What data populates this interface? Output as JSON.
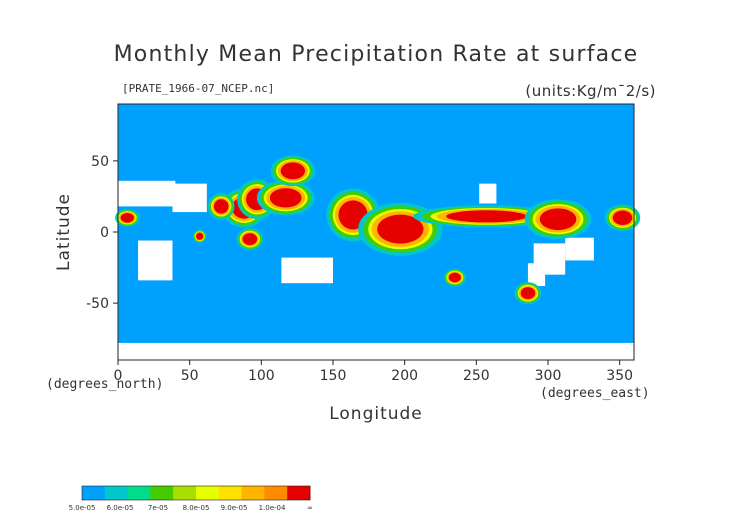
{
  "chart_data": {
    "type": "heatmap",
    "title": "Monthly Mean Precipitation Rate at surface",
    "source_label": "[PRATE_1966-07_NCEP.nc]",
    "units_label": "(units:Kg/m¯2/s)",
    "xlabel": "Longitude",
    "ylabel": "Latitude",
    "x_unit_label": "(degrees_east)",
    "y_unit_label": "(degrees_north)",
    "xlim": [
      0,
      360
    ],
    "ylim": [
      -90,
      90
    ],
    "x_ticks": [
      "0",
      "50",
      "100",
      "150",
      "200",
      "250",
      "300",
      "350"
    ],
    "y_ticks": [
      "50",
      "0",
      "-50"
    ],
    "background_color": "#00a0ff",
    "missing_color": "#ffffff",
    "colorbar": {
      "labels": [
        "5.0e-05",
        "6.0e-05",
        "7e-05",
        "8.0e-05",
        "9.0e-05",
        "1.0e-04",
        "∞"
      ],
      "colors": [
        "#00a0ff",
        "#00c8c8",
        "#00dc8c",
        "#44cc00",
        "#aade00",
        "#e6ff00",
        "#ffe100",
        "#ffb400",
        "#ff8c00",
        "#e60000"
      ]
    },
    "regions": [
      {
        "lon": [
          78,
          98
        ],
        "lat": [
          8,
          26
        ],
        "level": 9
      },
      {
        "lon": [
          88,
          106
        ],
        "lat": [
          14,
          32
        ],
        "level": 9
      },
      {
        "lon": [
          104,
          130
        ],
        "lat": [
          16,
          32
        ],
        "level": 9
      },
      {
        "lon": [
          66,
          78
        ],
        "lat": [
          12,
          24
        ],
        "level": 9
      },
      {
        "lon": [
          152,
          176
        ],
        "lat": [
          0,
          24
        ],
        "level": 9
      },
      {
        "lon": [
          178,
          216
        ],
        "lat": [
          -10,
          14
        ],
        "level": 9
      },
      {
        "lon": [
          224,
          290
        ],
        "lat": [
          6,
          16
        ],
        "level": 9
      },
      {
        "lon": [
          292,
          322
        ],
        "lat": [
          0,
          18
        ],
        "level": 9
      },
      {
        "lon": [
          344,
          360
        ],
        "lat": [
          4,
          16
        ],
        "level": 9
      },
      {
        "lon": [
          1,
          12
        ],
        "lat": [
          6,
          14
        ],
        "level": 9
      },
      {
        "lon": [
          86,
          98
        ],
        "lat": [
          -10,
          0
        ],
        "level": 9
      },
      {
        "lon": [
          112,
          132
        ],
        "lat": [
          36,
          50
        ],
        "level": 9
      },
      {
        "lon": [
          280,
          292
        ],
        "lat": [
          -48,
          -38
        ],
        "level": 9
      },
      {
        "lon": [
          230,
          240
        ],
        "lat": [
          -36,
          -28
        ],
        "level": 9
      },
      {
        "lon": [
          54,
          60
        ],
        "lat": [
          -6,
          0
        ],
        "level": 9
      }
    ],
    "missing_regions": [
      {
        "lon": [
          0,
          40
        ],
        "lat": [
          18,
          36
        ]
      },
      {
        "lon": [
          38,
          62
        ],
        "lat": [
          14,
          34
        ]
      },
      {
        "lon": [
          14,
          38
        ],
        "lat": [
          -34,
          -6
        ]
      },
      {
        "lon": [
          114,
          150
        ],
        "lat": [
          -36,
          -18
        ]
      },
      {
        "lon": [
          252,
          264
        ],
        "lat": [
          20,
          34
        ]
      },
      {
        "lon": [
          290,
          312
        ],
        "lat": [
          -30,
          -8
        ]
      },
      {
        "lon": [
          312,
          332
        ],
        "lat": [
          -20,
          -4
        ]
      },
      {
        "lon": [
          286,
          298
        ],
        "lat": [
          -38,
          -22
        ]
      },
      {
        "lon": [
          0,
          360
        ],
        "lat": [
          -90,
          -78
        ]
      }
    ]
  }
}
